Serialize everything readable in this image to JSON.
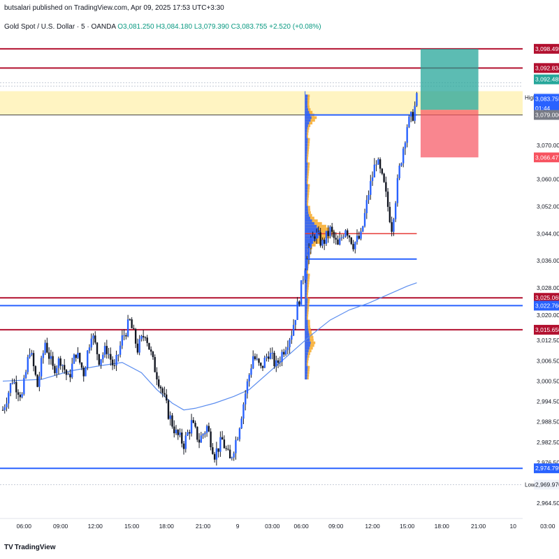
{
  "header": {
    "published": "butsalari published on TradingView.com, Apr 09, 2025 17:53 UTC+3:30",
    "symbol": "Gold Spot / U.S. Dollar · 5 · OANDA",
    "ohlc": "O3,081.250  H3,084.180  L3,079.390  C3,083.755  +2.520 (+0.08%)"
  },
  "footer": {
    "brand": "TradingView",
    "logo_icon": "tradingview-logo-icon"
  },
  "colors": {
    "up": "#131722",
    "down": "#131722",
    "ma": "#5b8def",
    "red_line": "#b2102f",
    "blue_line": "#2962ff",
    "zone": "#fff4c2",
    "profile_blue": "#2962ff",
    "profile_orange": "#f7a825",
    "target": "#26a69a",
    "stop": "#f7525f"
  },
  "chart_data": {
    "type": "candlestick",
    "title": "",
    "xlabel": "",
    "ylabel": "",
    "ylim": [
      2960,
      3103
    ],
    "x_ticks": [
      "06:00",
      "09:00",
      "12:00",
      "15:00",
      "18:00",
      "21:00",
      "9",
      "03:00",
      "06:00",
      "09:00",
      "12:00",
      "15:00",
      "18:00",
      "21:00",
      "10",
      "03:00"
    ],
    "y_ticks": [
      2964.5,
      2976.5,
      2982.5,
      2988.5,
      2994.5,
      3000.5,
      3006.5,
      3012.5,
      3020.0,
      3028.0,
      3036.0,
      3044.0,
      3052.0,
      3060.0,
      3070.0
    ],
    "y_tick_labels": [
      "2,964.500",
      "2,976.500",
      "2,982.500",
      "2,988.500",
      "2,994.500",
      "3,000.500",
      "3,006.500",
      "3,012.500",
      "3,020.000",
      "3,028.000",
      "3,036.000",
      "3,044.000",
      "3,052.000",
      "3,060.000",
      "3,070.000"
    ],
    "price_path": [
      [
        0,
        2992
      ],
      [
        5,
        3001
      ],
      [
        10,
        2996
      ],
      [
        14,
        3010
      ],
      [
        18,
        2999
      ],
      [
        22,
        3012
      ],
      [
        26,
        3004
      ],
      [
        30,
        3007
      ],
      [
        34,
        3001
      ],
      [
        38,
        3009
      ],
      [
        42,
        3003
      ],
      [
        46,
        3015
      ],
      [
        50,
        3007
      ],
      [
        54,
        3010
      ],
      [
        58,
        3004
      ],
      [
        62,
        3013
      ],
      [
        66,
        3018
      ],
      [
        70,
        3010
      ],
      [
        74,
        3015
      ],
      [
        78,
        3006
      ],
      [
        82,
        2999
      ],
      [
        86,
        2991
      ],
      [
        90,
        2985
      ],
      [
        94,
        2982
      ],
      [
        98,
        2988
      ],
      [
        102,
        2983
      ],
      [
        106,
        2987
      ],
      [
        110,
        2979
      ],
      [
        114,
        2983
      ],
      [
        118,
        2977
      ],
      [
        122,
        2985
      ],
      [
        126,
        2997
      ],
      [
        130,
        3008
      ],
      [
        134,
        3004
      ],
      [
        138,
        3009
      ],
      [
        142,
        3005
      ],
      [
        146,
        3010
      ],
      [
        150,
        3015
      ],
      [
        154,
        3025
      ],
      [
        158,
        3038
      ],
      [
        162,
        3044
      ],
      [
        166,
        3041
      ],
      [
        170,
        3045
      ],
      [
        174,
        3040
      ],
      [
        178,
        3046
      ],
      [
        182,
        3041
      ],
      [
        186,
        3043
      ],
      [
        190,
        3056
      ],
      [
        194,
        3066
      ],
      [
        198,
        3058
      ],
      [
        202,
        3046
      ],
      [
        206,
        3063
      ],
      [
        210,
        3076
      ],
      [
        213,
        3079
      ],
      [
        215,
        3083.755
      ]
    ],
    "moving_average": [
      [
        0,
        3000.5
      ],
      [
        20,
        3001
      ],
      [
        35,
        3003.5
      ],
      [
        50,
        3005
      ],
      [
        62,
        3006
      ],
      [
        72,
        3003
      ],
      [
        80,
        2998
      ],
      [
        88,
        2994
      ],
      [
        94,
        2992
      ],
      [
        100,
        2992.5
      ],
      [
        110,
        2994
      ],
      [
        120,
        2996
      ],
      [
        128,
        2998
      ],
      [
        140,
        3004
      ],
      [
        150,
        3009
      ],
      [
        160,
        3014
      ],
      [
        170,
        3018.5
      ],
      [
        180,
        3021.5
      ],
      [
        190,
        3023.5
      ],
      [
        200,
        3026
      ],
      [
        210,
        3028.5
      ],
      [
        215,
        3029.5
      ]
    ],
    "x_max_index": 270,
    "x_tick_positions": [
      11,
      30,
      48,
      67,
      85,
      104,
      122,
      140,
      155,
      173,
      192,
      210,
      228,
      247,
      265,
      283
    ],
    "horizontal_levels": [
      {
        "value": 3098.495,
        "label": "3,098.495",
        "color": "red"
      },
      {
        "value": 3092.834,
        "label": "3,092.834",
        "color": "red"
      },
      {
        "value": 3025.065,
        "label": "3,025.065",
        "color": "red"
      },
      {
        "value": 3022.76,
        "label": "3,022.760",
        "color": "blue"
      },
      {
        "value": 3015.65,
        "label": "3,015.650",
        "color": "red"
      },
      {
        "value": 2974.795,
        "label": "2,974.795",
        "color": "blue"
      }
    ],
    "zone": {
      "from": 3079.0,
      "to": 3086.0
    },
    "price_labels": [
      {
        "value": 3089.485,
        "label": "3,092.485",
        "color": "target"
      },
      {
        "value": 3084.18,
        "label": "3,084.180",
        "tag": "High",
        "color": "plain"
      },
      {
        "value": 3083.755,
        "label": "3,083.755",
        "color": "blue"
      },
      {
        "value": 3081.0,
        "label": "01:44",
        "color": "blue"
      },
      {
        "value": 3079.0,
        "label": "3,079.000",
        "color": "gray"
      },
      {
        "value": 3066.477,
        "label": "3,066.477",
        "color": "stop"
      },
      {
        "value": 2969.97,
        "label": "2,969.970",
        "tag": "Low",
        "color": "plain"
      }
    ],
    "position": {
      "entry": 3080.5,
      "target": 3092.485,
      "stop": 3066.477,
      "x_from": 217,
      "x_to": 247
    },
    "vp_levels": {
      "poc": 3044.0,
      "val": 3036.5,
      "vah": 3079.0
    }
  }
}
